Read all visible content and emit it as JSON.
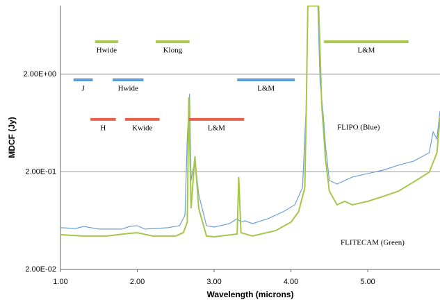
{
  "chart_data": {
    "type": "line",
    "x_label": "Wavelength (microns)",
    "y_label": "MDCF (Jy)",
    "log_y": true,
    "grid": true,
    "xlim": [
      1.0,
      5.94
    ],
    "ylim": [
      0.02,
      10.1
    ],
    "xticks": [
      {
        "value": 1,
        "label": "1.00"
      },
      {
        "value": 2,
        "label": "2.00"
      },
      {
        "value": 3,
        "label": "3.00"
      },
      {
        "value": 4,
        "label": "4.00"
      },
      {
        "value": 5,
        "label": "5.00"
      }
    ],
    "yticks": [
      {
        "value": 0.02,
        "label": "2.00E-02"
      },
      {
        "value": 0.2,
        "label": "2.00E-01"
      },
      {
        "value": 2,
        "label": "2.00E+00"
      }
    ],
    "annotations": [
      "FLIPO (Blue)",
      "FLITECAM (Green)"
    ],
    "series": [
      {
        "color": "#6b9fd6",
        "x": [
          1.0,
          1.2,
          1.3,
          1.5,
          1.8,
          1.9,
          2.0,
          2.1,
          2.4,
          2.55,
          2.62,
          2.65,
          2.68,
          2.7,
          2.75,
          2.8,
          2.9,
          3.0,
          3.2,
          3.3,
          3.35,
          3.4,
          3.5,
          3.7,
          3.9,
          4.05,
          4.15,
          4.2,
          4.22,
          4.35,
          4.38,
          4.42,
          4.45,
          4.5,
          4.6,
          4.8,
          5.0,
          5.2,
          5.4,
          5.6,
          5.8,
          5.85,
          5.9,
          5.94
        ],
        "values": [
          0.0535,
          0.0526,
          0.0552,
          0.0518,
          0.0518,
          0.0552,
          0.0561,
          0.0518,
          0.0535,
          0.0561,
          0.0718,
          0.436,
          1.26,
          0.163,
          0.267,
          0.117,
          0.0561,
          0.0543,
          0.059,
          0.0662,
          0.061,
          0.063,
          0.059,
          0.0662,
          0.078,
          0.0918,
          0.138,
          0.988,
          10,
          10,
          1.61,
          0.773,
          0.37,
          0.163,
          0.15,
          0.177,
          0.192,
          0.208,
          0.234,
          0.258,
          0.314,
          0.513,
          0.436,
          0.84
        ]
      },
      {
        "color": "#a6c64a",
        "x": [
          1.0,
          1.3,
          1.6,
          1.9,
          2.0,
          2.2,
          2.5,
          2.6,
          2.65,
          2.67,
          2.7,
          2.75,
          2.8,
          2.9,
          3.0,
          3.3,
          3.32,
          3.35,
          3.5,
          3.8,
          4.0,
          4.1,
          4.18,
          4.2,
          4.22,
          4.36,
          4.4,
          4.45,
          4.5,
          4.6,
          4.7,
          4.8,
          5.0,
          5.2,
          5.4,
          5.6,
          5.8,
          5.9,
          5.94
        ],
        "values": [
          0.0454,
          0.044,
          0.044,
          0.0469,
          0.0476,
          0.044,
          0.044,
          0.0476,
          0.061,
          1.16,
          0.0846,
          0.289,
          0.0846,
          0.044,
          0.0432,
          0.0461,
          0.177,
          0.0476,
          0.044,
          0.05,
          0.061,
          0.078,
          0.138,
          0.988,
          10,
          10,
          0.988,
          0.267,
          0.127,
          0.0918,
          0.0997,
          0.0918,
          0.0997,
          0.112,
          0.127,
          0.158,
          0.198,
          0.314,
          0.713
        ]
      }
    ],
    "bands": [
      {
        "label": "Hwide",
        "color": "#a9c94b",
        "y": 4.3,
        "x": [
          1.45,
          1.75
        ]
      },
      {
        "label": "Klong",
        "color": "#a9c94b",
        "y": 4.3,
        "x": [
          2.24,
          2.68
        ]
      },
      {
        "label": "L&M",
        "color": "#a9c94b",
        "y": 4.3,
        "x": [
          4.43,
          5.53
        ]
      },
      {
        "label": "J",
        "color": "#5b9bd5",
        "y": 1.75,
        "x": [
          1.17,
          1.42
        ]
      },
      {
        "label": "Hwide",
        "color": "#5b9bd5",
        "y": 1.75,
        "x": [
          1.68,
          2.08
        ]
      },
      {
        "label": "L&M",
        "color": "#5b9bd5",
        "y": 1.75,
        "x": [
          3.3,
          4.05
        ]
      },
      {
        "label": "H",
        "color": "#e8604c",
        "y": 0.69,
        "x": [
          1.39,
          1.72
        ]
      },
      {
        "label": "Kwide",
        "color": "#e8604c",
        "y": 0.69,
        "x": [
          1.84,
          2.29
        ]
      },
      {
        "label": "L&M",
        "color": "#e8604c",
        "y": 0.69,
        "x": [
          2.67,
          3.39
        ]
      }
    ]
  }
}
